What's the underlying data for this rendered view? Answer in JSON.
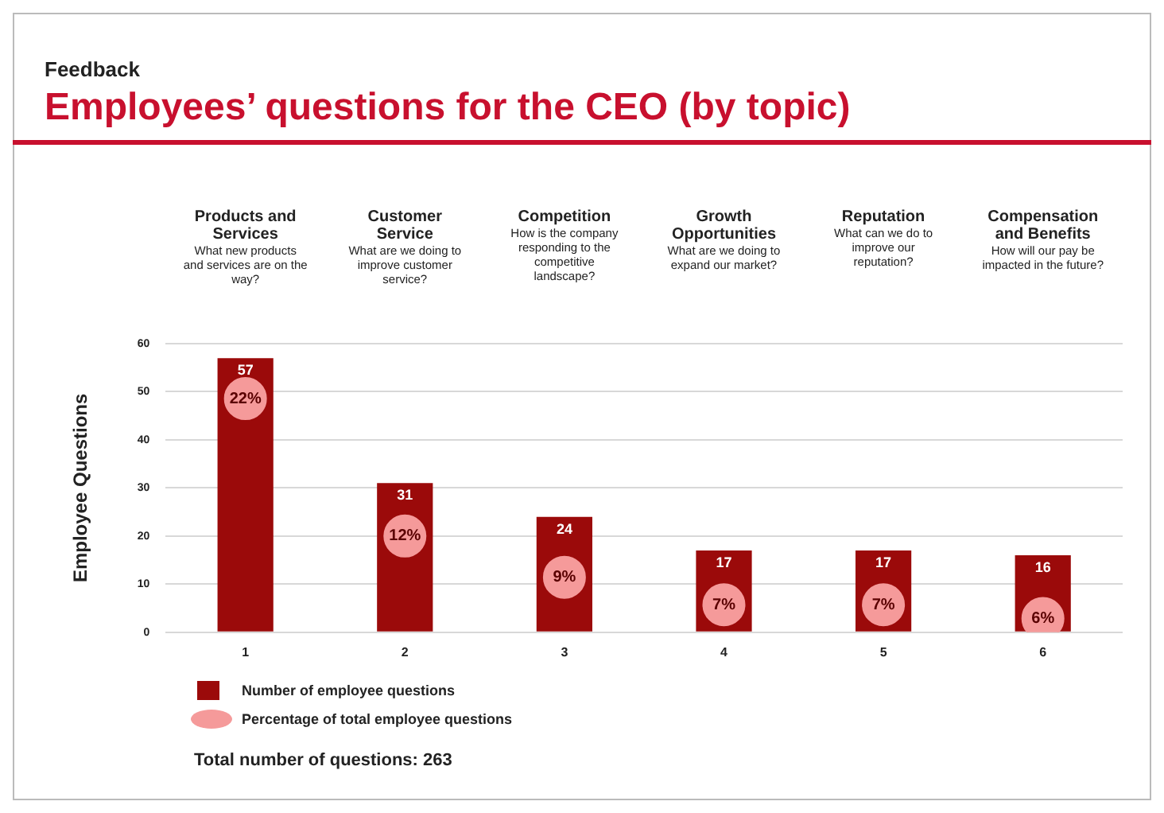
{
  "chart_data": {
    "type": "bar",
    "subtitle": "Feedback",
    "title": "Employees’ questions for the CEO (by topic)",
    "ylabel": "Employee Questions",
    "categories": [
      "1",
      "2",
      "3",
      "4",
      "5",
      "6"
    ],
    "series": [
      {
        "name": "Number of employee questions",
        "color": "#9b0a0a",
        "values": [
          57,
          31,
          24,
          17,
          17,
          16
        ]
      },
      {
        "name": "Percentage of total employee questions",
        "type": "scatter",
        "axis": "y2",
        "color": "#f59a9a",
        "values": [
          22,
          12,
          9,
          7,
          7,
          6
        ],
        "value_labels": [
          "22%",
          "12%",
          "9%",
          "7%",
          "7%",
          "6%"
        ]
      }
    ],
    "ylim": [
      0,
      60
    ],
    "yticks": [
      0,
      10,
      20,
      30,
      40,
      50,
      60
    ],
    "y2lim": [
      5,
      26
    ],
    "tick_labels": "xy",
    "grid": "y",
    "legend": "bottom left",
    "marker": "circle",
    "data_labels": true,
    "annotations": [
      "Products and Services",
      "What new products and services are on the way?",
      "Customer Service",
      "What are we doing to improve customer service?",
      "Competition",
      "How is the company responding to the competitive landscape?",
      "Growth Opportunities",
      "What are we doing to expand our market?",
      "Reputation",
      "What can we do to improve our reputation?",
      "Compensation and Benefits",
      "How will our pay be impacted in the future?",
      "Total number of questions: 263"
    ]
  }
}
